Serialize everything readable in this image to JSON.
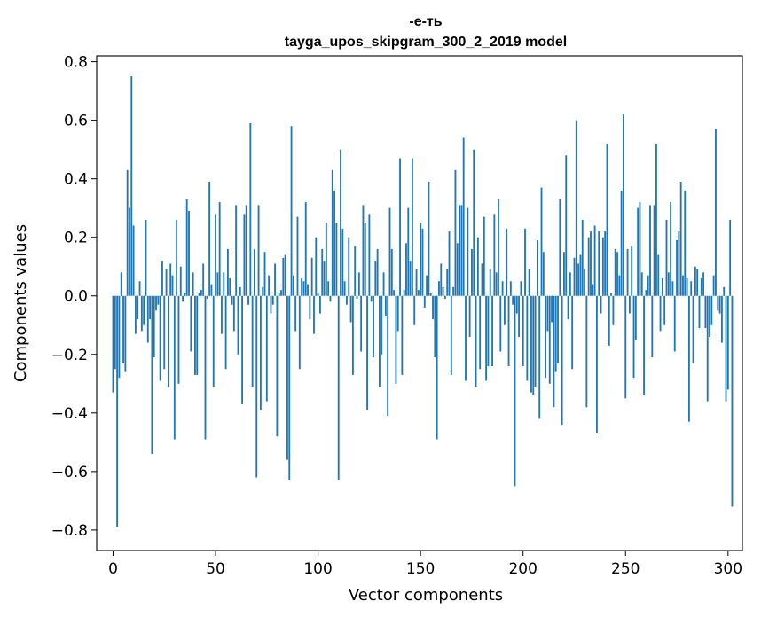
{
  "chart_data": {
    "type": "bar",
    "title_line1": "-е-ть",
    "title_line2": "tayga_upos_skipgram_300_2_2019 model",
    "xlabel": "Vector components",
    "ylabel": "Components values",
    "xlim": [
      -8,
      307
    ],
    "ylim": [
      -0.87,
      0.82
    ],
    "xticks": [
      0,
      50,
      100,
      150,
      200,
      250,
      300
    ],
    "xtick_labels": [
      "0",
      "50",
      "100",
      "150",
      "200",
      "250",
      "300"
    ],
    "yticks": [
      -0.8,
      -0.6,
      -0.4,
      -0.2,
      0.0,
      0.2,
      0.4,
      0.6,
      0.8
    ],
    "ytick_labels": [
      "−0.8",
      "−0.6",
      "−0.4",
      "−0.2",
      "0.0",
      "0.2",
      "0.4",
      "0.6",
      "0.8"
    ],
    "bar_color": "#1f77b4",
    "values": [
      -0.33,
      -0.25,
      -0.79,
      -0.28,
      0.08,
      -0.23,
      -0.26,
      0.43,
      0.3,
      0.75,
      0.24,
      -0.13,
      -0.08,
      0.05,
      -0.12,
      -0.1,
      0.26,
      -0.16,
      -0.08,
      -0.54,
      -0.21,
      -0.05,
      -0.03,
      -0.29,
      0.12,
      -0.25,
      0.09,
      -0.31,
      0.11,
      0.07,
      -0.49,
      0.26,
      -0.3,
      0.1,
      -0.02,
      0.01,
      0.33,
      0.29,
      -0.19,
      0.08,
      -0.27,
      -0.27,
      0.01,
      0.02,
      0.11,
      -0.49,
      -0.01,
      0.39,
      0.04,
      -0.31,
      0.28,
      0.08,
      0.32,
      -0.13,
      0.08,
      -0.25,
      0.16,
      0.06,
      -0.03,
      -0.12,
      0.31,
      -0.2,
      0.03,
      -0.37,
      0.28,
      0.31,
      -0.03,
      0.59,
      -0.31,
      0.16,
      -0.62,
      0.31,
      -0.39,
      0.03,
      0.15,
      -0.36,
      0.07,
      -0.06,
      -0.03,
      0.11,
      -0.48,
      0.01,
      0.02,
      0.13,
      0.14,
      -0.56,
      -0.63,
      0.58,
      0.07,
      -0.12,
      0.27,
      -0.25,
      0.06,
      0.05,
      0.32,
      0.04,
      -0.08,
      0.13,
      -0.13,
      0.2,
      0.01,
      -0.06,
      0.16,
      0.12,
      0.25,
      0.05,
      -0.02,
      0.43,
      0.36,
      0.25,
      -0.63,
      0.5,
      0.23,
      0.05,
      -0.03,
      0.2,
      -0.09,
      -0.27,
      0.17,
      -0.01,
      0.08,
      -0.19,
      0.31,
      0.25,
      -0.39,
      0.28,
      -0.02,
      -0.21,
      0.12,
      0.16,
      -0.31,
      -0.2,
      0.08,
      -0.07,
      -0.41,
      0.3,
      0.16,
      0.02,
      -0.3,
      -0.12,
      0.47,
      -0.27,
      0.02,
      0.18,
      0.3,
      0.12,
      0.47,
      -0.1,
      0.09,
      0.02,
      0.25,
      0.23,
      -0.04,
      0.07,
      0.39,
      0.01,
      -0.08,
      -0.21,
      -0.49,
      0.05,
      0.11,
      0.03,
      -0.01,
      0.09,
      0.22,
      -0.27,
      0.03,
      0.43,
      0.18,
      0.31,
      0.31,
      0.54,
      -0.29,
      0.3,
      -0.14,
      0.16,
      0.5,
      -0.31,
      0.2,
      -0.25,
      0.11,
      0.27,
      -0.29,
      -0.24,
      0.09,
      -0.24,
      0.28,
      0.08,
      0.33,
      -0.19,
      0.05,
      -0.1,
      0.23,
      -0.24,
      0.05,
      -0.03,
      -0.65,
      -0.06,
      -0.14,
      0.05,
      -0.24,
      0.23,
      -0.29,
      0.09,
      -0.33,
      -0.34,
      -0.31,
      0.19,
      -0.42,
      0.37,
      0.15,
      -0.28,
      -0.12,
      -0.3,
      -0.09,
      -0.38,
      -0.26,
      -0.23,
      0.33,
      -0.44,
      0.15,
      0.48,
      -0.08,
      0.08,
      -0.25,
      0.13,
      0.6,
      0.11,
      0.14,
      0.26,
      0.09,
      -0.38,
      0.2,
      0.22,
      0.04,
      0.24,
      -0.47,
      0.22,
      -0.06,
      0.2,
      0.22,
      0.52,
      -0.17,
      0.01,
      -0.1,
      0.16,
      0.15,
      0.07,
      0.36,
      0.62,
      -0.35,
      0.16,
      -0.06,
      0.17,
      -0.28,
      -0.15,
      0.3,
      0.32,
      0.08,
      -0.34,
      0.02,
      0.07,
      0.31,
      -0.21,
      0.31,
      0.52,
      0.14,
      -0.12,
      0.06,
      -0.1,
      0.26,
      0.08,
      0.32,
      0.05,
      -0.19,
      0.19,
      0.22,
      0.39,
      0.07,
      0.36,
      0.06,
      -0.43,
      0.05,
      -0.23,
      0.1,
      0.09,
      -0.11,
      0.06,
      0.08,
      -0.11,
      -0.36,
      -0.14,
      -0.1,
      0.07,
      0.57,
      -0.05,
      -0.06,
      -0.16,
      0.03,
      -0.36,
      -0.32,
      0.26,
      -0.72
    ]
  }
}
